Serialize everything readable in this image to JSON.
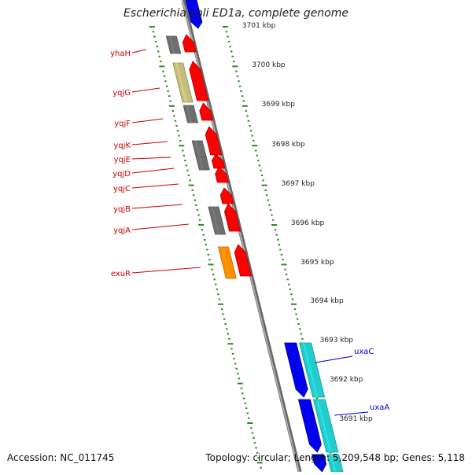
{
  "title": "Escherichia coli ED1a, complete genome",
  "footer": {
    "accession": "Accession: NC_011745",
    "topology": "Topology: circular; Length: 5,209,548 bp; Genes: 5,118"
  },
  "colors": {
    "background": "#ffffff",
    "axis": "#8a8a8a",
    "tick": "#2a8a1e",
    "forward_gene": "#ff0000",
    "gray_block": "#6e6e6e",
    "olive_block": "#c2bd7a",
    "orange_block": "#ff8c00",
    "reverse_gene": "#0000ee",
    "cyan_block": "#22cccc",
    "forward_label": "#cc0000",
    "reverse_label": "#0000cc"
  },
  "scale_labels": [
    "3701 kbp",
    "3700 kbp",
    "3699 kbp",
    "3698 kbp",
    "3697 kbp",
    "3696 kbp",
    "3695 kbp",
    "3694 kbp",
    "3693 kbp",
    "3692 kbp",
    "3691 kbp"
  ],
  "forward_genes": [
    {
      "name": "yhaH",
      "icon": "gene-arrow-up",
      "block": "gray"
    },
    {
      "name": "yqjG",
      "icon": "gene-arrow-up",
      "block": "olive"
    },
    {
      "name": "yqjF",
      "icon": "gene-arrow-up",
      "block": "gray"
    },
    {
      "name": "yqjK",
      "icon": "gene-arrow-up",
      "block": "gray"
    },
    {
      "name": "yqjE",
      "icon": "gene-arrow-up",
      "block": "gray"
    },
    {
      "name": "yqjD",
      "icon": "gene-arrow-up",
      "block": "none"
    },
    {
      "name": "yqjC",
      "icon": "gene-arrow-up",
      "block": "none"
    },
    {
      "name": "yqjB",
      "icon": "gene-arrow-up",
      "block": "gray"
    },
    {
      "name": "yqjA",
      "icon": "gene-arrow-up",
      "block": "gray"
    },
    {
      "name": "exuR",
      "icon": "gene-arrow-up",
      "block": "orange"
    }
  ],
  "reverse_genes": [
    {
      "name": "uxaC",
      "icon": "gene-arrow-down"
    },
    {
      "name": "uxaA",
      "icon": "gene-arrow-down"
    }
  ]
}
